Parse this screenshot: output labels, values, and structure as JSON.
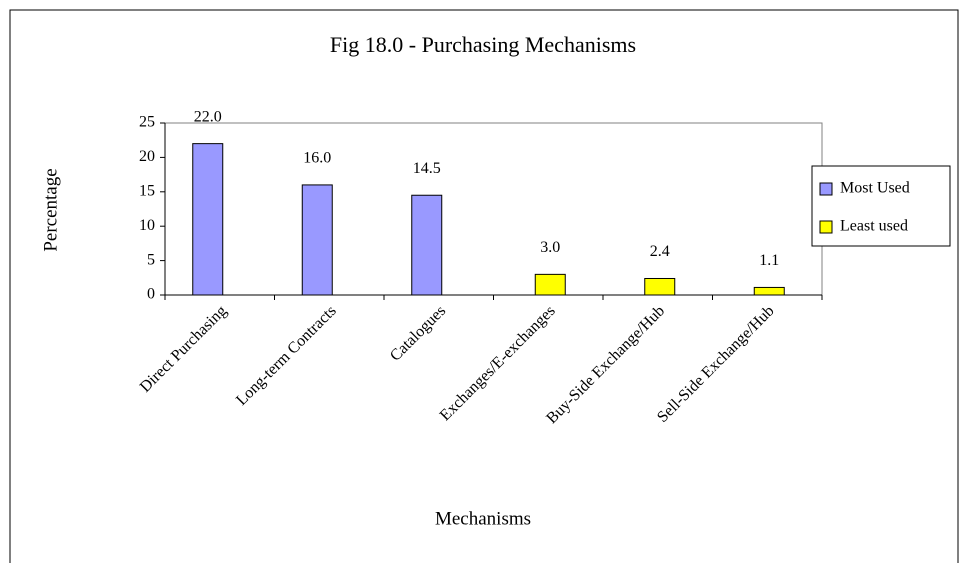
{
  "chart_data": {
    "type": "bar",
    "title": "Fig 18.0 - Purchasing Mechanisms",
    "x_label": "Mechanisms",
    "y_label": "Percentage",
    "categories": [
      "Direct Purchasing",
      "Long-term Contracts",
      "Catalogues",
      "Exchanges/E-exchanges",
      "Buy-Side Exchange/Hub",
      "Sell-Side Exchange/Hub"
    ],
    "series": [
      {
        "name": "Most Used",
        "color": "#9999ff",
        "values": [
          22,
          16,
          14.5,
          null,
          null,
          null
        ],
        "value_labels": [
          "22.0",
          "16.0",
          "14.5",
          null,
          null,
          null
        ]
      },
      {
        "name": "Least used",
        "color": "#ffff00",
        "values": [
          null,
          null,
          null,
          3,
          2.4,
          1.1
        ],
        "value_labels": [
          null,
          null,
          null,
          "3.0",
          "2.4",
          "1.1"
        ]
      }
    ],
    "ylim": [
      0,
      25
    ],
    "yticks": [
      0,
      5,
      10,
      15,
      20,
      25
    ],
    "grid": false,
    "legend": "right"
  }
}
